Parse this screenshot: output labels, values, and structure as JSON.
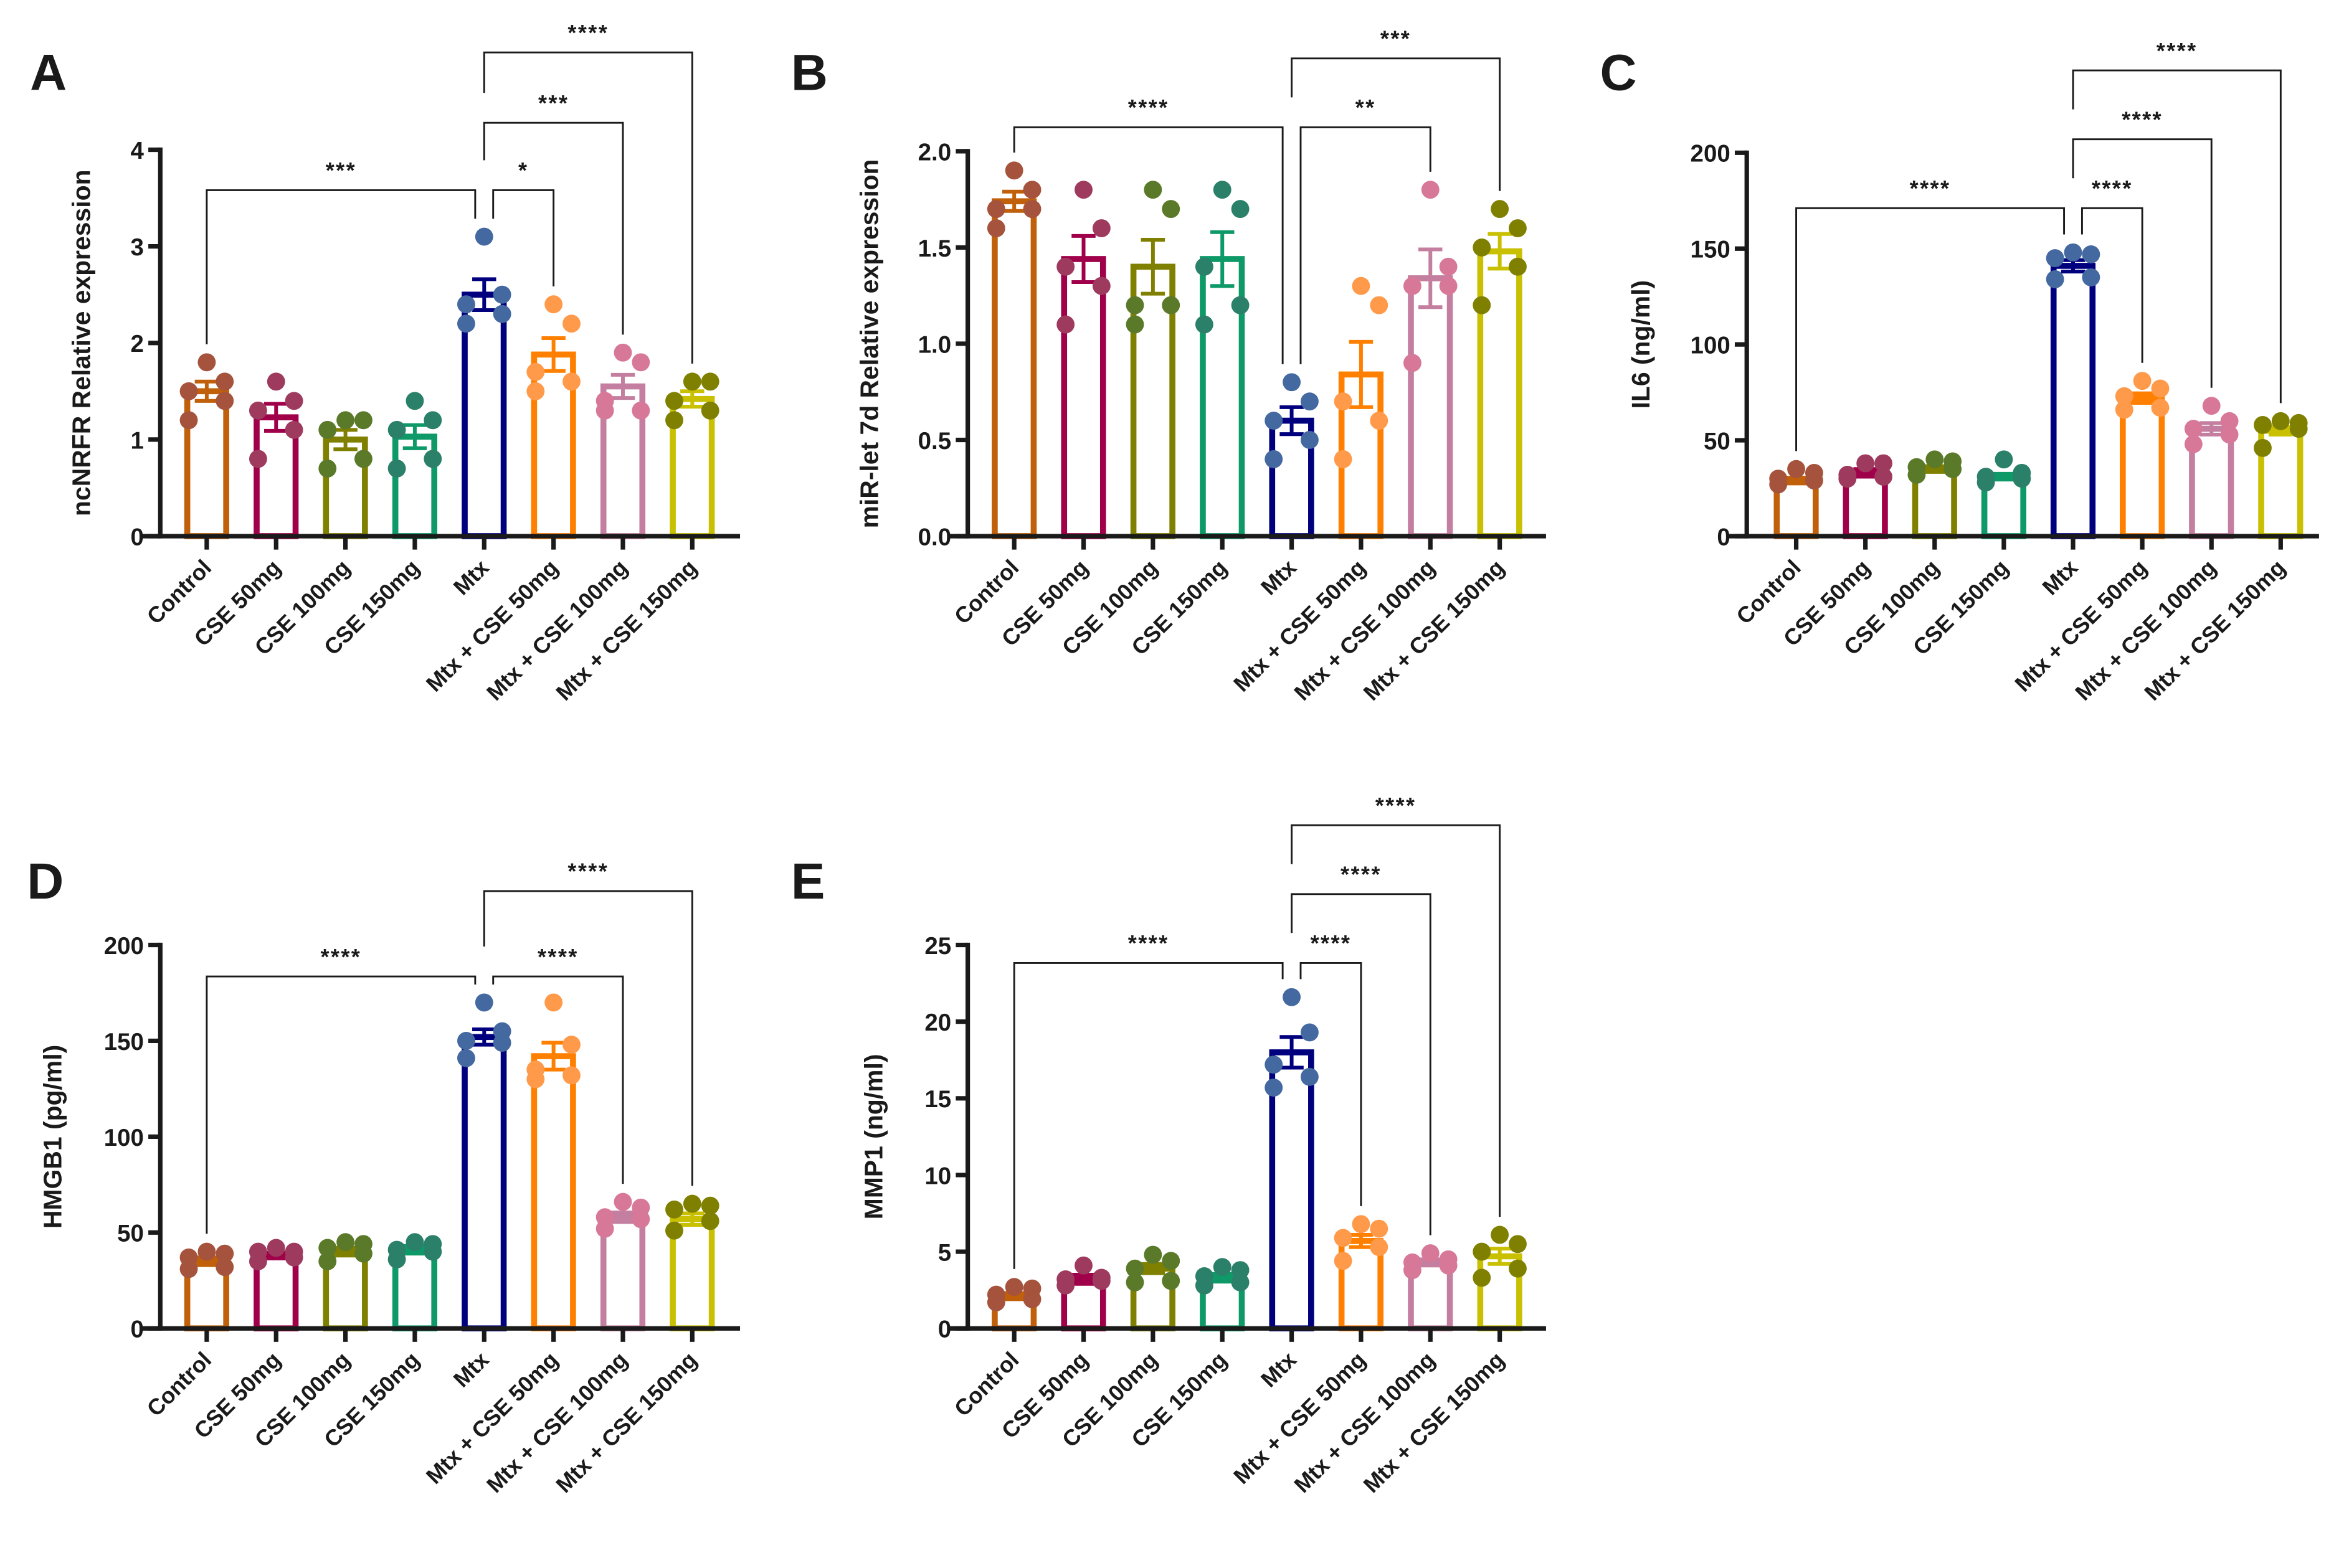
{
  "chart_data": [
    {
      "type": "bar",
      "panel": "A",
      "ylabel": "ncNRFR Relative expression",
      "ylim": [
        0,
        4
      ],
      "yticks": [
        0,
        1,
        2,
        3,
        4
      ],
      "ytick_labels": [
        "0",
        "1",
        "2",
        "3",
        "4"
      ],
      "categories": [
        "Control",
        "CSE 50mg",
        "CSE 100mg",
        "CSE 150mg",
        "Mtx",
        "Mtx + CSE 50mg",
        "Mtx + CSE 100mg",
        "Mtx + CSE 150mg"
      ],
      "means": [
        1.5,
        1.23,
        1.0,
        1.03,
        2.5,
        1.88,
        1.55,
        1.42
      ],
      "sem": [
        0.1,
        0.14,
        0.1,
        0.12,
        0.16,
        0.17,
        0.12,
        0.08
      ],
      "points": [
        [
          1.8,
          1.6,
          1.5,
          1.4,
          1.2
        ],
        [
          1.6,
          1.4,
          1.3,
          1.1,
          0.8
        ],
        [
          1.2,
          1.2,
          1.1,
          0.8,
          0.7
        ],
        [
          1.4,
          1.2,
          1.1,
          0.8,
          0.7
        ],
        [
          3.1,
          2.5,
          2.4,
          2.3,
          2.2
        ],
        [
          2.4,
          2.2,
          1.7,
          1.6,
          1.5
        ],
        [
          1.9,
          1.8,
          1.4,
          1.3,
          1.3
        ],
        [
          1.6,
          1.6,
          1.4,
          1.3,
          1.2
        ]
      ],
      "comparisons": [
        {
          "from": 0,
          "to": 4,
          "label": "***",
          "level": 0
        },
        {
          "from": 4,
          "to": 5,
          "label": "*",
          "level": 0
        },
        {
          "from": 4,
          "to": 6,
          "label": "***",
          "level": 1
        },
        {
          "from": 4,
          "to": 7,
          "label": "****",
          "level": 2
        }
      ]
    },
    {
      "type": "bar",
      "panel": "B",
      "ylabel": "miR-let 7d Relative expression",
      "ylim": [
        0,
        2
      ],
      "yticks": [
        0,
        0.5,
        1,
        1.5,
        2
      ],
      "ytick_labels": [
        "0.0",
        "0.5",
        "1.0",
        "1.5",
        "2.0"
      ],
      "categories": [
        "Control",
        "CSE 50mg",
        "CSE 100mg",
        "CSE 150mg",
        "Mtx",
        "Mtx + CSE 50mg",
        "Mtx + CSE 100mg",
        "Mtx + CSE 150mg"
      ],
      "means": [
        1.74,
        1.44,
        1.4,
        1.44,
        0.6,
        0.84,
        1.34,
        1.48
      ],
      "sem": [
        0.05,
        0.12,
        0.14,
        0.14,
        0.07,
        0.17,
        0.15,
        0.09
      ],
      "points": [
        [
          1.9,
          1.8,
          1.7,
          1.7,
          1.6
        ],
        [
          1.8,
          1.6,
          1.4,
          1.3,
          1.1
        ],
        [
          1.8,
          1.7,
          1.2,
          1.2,
          1.1
        ],
        [
          1.8,
          1.7,
          1.4,
          1.2,
          1.1
        ],
        [
          0.8,
          0.7,
          0.6,
          0.5,
          0.4
        ],
        [
          1.3,
          1.2,
          0.7,
          0.6,
          0.4
        ],
        [
          1.8,
          1.4,
          1.3,
          1.3,
          0.9
        ],
        [
          1.7,
          1.6,
          1.5,
          1.4,
          1.2
        ]
      ],
      "comparisons": [
        {
          "from": 0,
          "to": 4,
          "label": "****",
          "level": 0
        },
        {
          "from": 4,
          "to": 6,
          "label": "**",
          "level": 0
        },
        {
          "from": 4,
          "to": 7,
          "label": "***",
          "level": 1
        }
      ]
    },
    {
      "type": "bar",
      "panel": "C",
      "ylabel": "IL6 (ng/ml)",
      "ylim": [
        0,
        200
      ],
      "yticks": [
        0,
        50,
        100,
        150,
        200
      ],
      "ytick_labels": [
        "0",
        "50",
        "100",
        "150",
        "200"
      ],
      "categories": [
        "Control",
        "CSE 50mg",
        "CSE 100mg",
        "CSE 150mg",
        "Mtx",
        "Mtx + CSE 50mg",
        "Mtx + CSE 100mg",
        "Mtx + CSE 150mg"
      ],
      "means": [
        29,
        33,
        35,
        31,
        141,
        72,
        56,
        55
      ],
      "sem": [
        1.5,
        2,
        1.5,
        1.5,
        3,
        2.5,
        3,
        2
      ],
      "points": [
        [
          35,
          33,
          30,
          29,
          27
        ],
        [
          38,
          38,
          32,
          31,
          30
        ],
        [
          40,
          39,
          36,
          35,
          32
        ],
        [
          40,
          33,
          31,
          30,
          28
        ],
        [
          148,
          147,
          145,
          135,
          134
        ],
        [
          81,
          77,
          73,
          67,
          66
        ],
        [
          68,
          60,
          56,
          53,
          48
        ],
        [
          60,
          59,
          58,
          56,
          46
        ]
      ],
      "comparisons": [
        {
          "from": 0,
          "to": 4,
          "label": "****",
          "level": 0
        },
        {
          "from": 4,
          "to": 5,
          "label": "****",
          "level": 0
        },
        {
          "from": 4,
          "to": 6,
          "label": "****",
          "level": 1
        },
        {
          "from": 4,
          "to": 7,
          "label": "****",
          "level": 2
        }
      ]
    },
    {
      "type": "bar",
      "panel": "D",
      "ylabel": "HMGB1 (pg/ml)",
      "ylim": [
        0,
        200
      ],
      "yticks": [
        0,
        50,
        100,
        150,
        200
      ],
      "ytick_labels": [
        "0",
        "50",
        "100",
        "150",
        "200"
      ],
      "categories": [
        "Control",
        "CSE 50mg",
        "CSE 100mg",
        "CSE 150mg",
        "Mtx",
        "Mtx + CSE 50mg",
        "Mtx + CSE 100mg",
        "Mtx + CSE 150mg"
      ],
      "means": [
        35,
        38,
        40,
        41,
        152,
        142,
        58,
        57
      ],
      "sem": [
        2,
        1.5,
        2,
        2,
        4,
        7,
        2.5,
        3
      ],
      "points": [
        [
          40,
          39,
          37,
          32,
          31
        ],
        [
          42,
          40,
          40,
          37,
          35
        ],
        [
          45,
          44,
          42,
          39,
          35
        ],
        [
          45,
          44,
          41,
          40,
          36
        ],
        [
          170,
          155,
          150,
          149,
          141
        ],
        [
          170,
          148,
          135,
          132,
          130
        ],
        [
          66,
          63,
          58,
          57,
          52
        ],
        [
          65,
          64,
          62,
          56,
          51
        ]
      ],
      "comparisons": [
        {
          "from": 0,
          "to": 4,
          "label": "****",
          "level": 0
        },
        {
          "from": 4,
          "to": 6,
          "label": "****",
          "level": 0
        },
        {
          "from": 4,
          "to": 7,
          "label": "****",
          "level": 1
        }
      ]
    },
    {
      "type": "bar",
      "panel": "E",
      "ylabel": "MMP1 (ng/ml)",
      "ylim": [
        0,
        25
      ],
      "yticks": [
        0,
        5,
        10,
        15,
        20,
        25
      ],
      "ytick_labels": [
        "0",
        "5",
        "10",
        "15",
        "20",
        "25"
      ],
      "categories": [
        "Control",
        "CSE 50mg",
        "CSE 100mg",
        "CSE 150mg",
        "Mtx",
        "Mtx + CSE 50mg",
        "Mtx + CSE 100mg",
        "Mtx + CSE 150mg"
      ],
      "means": [
        2.1,
        3.2,
        3.9,
        3.3,
        18.0,
        5.7,
        4.3,
        4.7
      ],
      "sem": [
        0.2,
        0.3,
        0.3,
        0.25,
        1.0,
        0.4,
        0.2,
        0.5
      ],
      "points": [
        [
          2.7,
          2.6,
          2.2,
          1.9,
          1.7
        ],
        [
          4.1,
          3.3,
          3.2,
          3.1,
          2.8
        ],
        [
          4.8,
          4.4,
          3.9,
          3.1,
          3.0
        ],
        [
          4.0,
          3.8,
          3.4,
          3.0,
          2.8
        ],
        [
          21.6,
          19.3,
          17.2,
          16.4,
          15.7
        ],
        [
          6.8,
          6.5,
          5.9,
          5.3,
          4.4
        ],
        [
          4.9,
          4.5,
          4.3,
          4.1,
          3.8
        ],
        [
          6.1,
          5.5,
          5.0,
          3.9,
          3.3
        ]
      ],
      "comparisons": [
        {
          "from": 0,
          "to": 4,
          "label": "****",
          "level": 0
        },
        {
          "from": 4,
          "to": 5,
          "label": "****",
          "level": 0
        },
        {
          "from": 4,
          "to": 6,
          "label": "****",
          "level": 1
        },
        {
          "from": 4,
          "to": 7,
          "label": "****",
          "level": 2
        }
      ]
    }
  ],
  "colors": {
    "bars": [
      "#c0600a",
      "#a0004a",
      "#808000",
      "#0e9a68",
      "#00007f",
      "#ff8000",
      "#c47fa0",
      "#c8c000"
    ],
    "dots": [
      "#a5533c",
      "#9e3a5e",
      "#5a7a2a",
      "#2a8068",
      "#4468a0",
      "#ff9a4a",
      "#d87898",
      "#808000"
    ],
    "axis": "#1a1a1a"
  }
}
